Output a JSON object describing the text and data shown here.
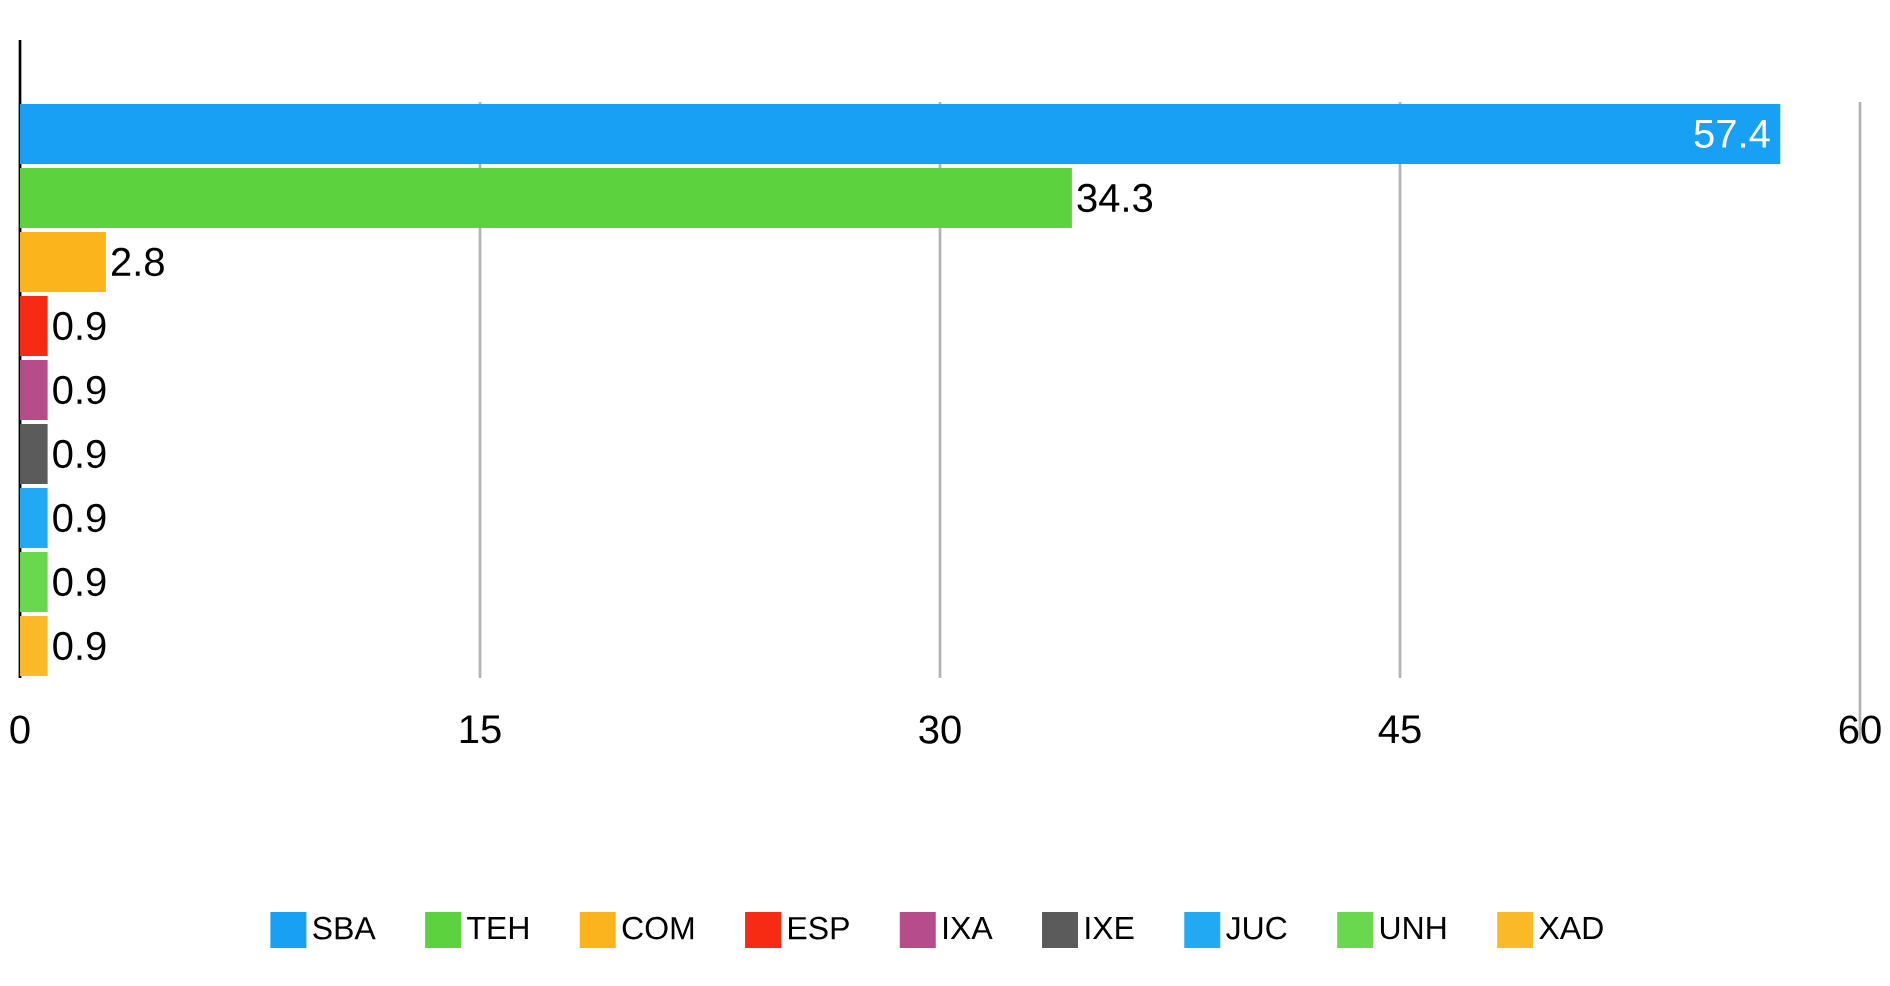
{
  "chart_data": {
    "type": "bar",
    "orientation": "horizontal",
    "categories": [
      null,
      null,
      null,
      null,
      null,
      null,
      null,
      null,
      null
    ],
    "series": [
      {
        "name": "SBA",
        "color": "#18a0f5",
        "values": [
          57.4,
          null,
          null,
          null,
          null,
          null,
          null,
          null,
          null
        ]
      },
      {
        "name": "TEH",
        "color": "#5cd23e",
        "values": [
          null,
          34.3,
          null,
          null,
          null,
          null,
          null,
          null,
          null
        ]
      },
      {
        "name": "COM",
        "color": "#fbb41c",
        "values": [
          null,
          null,
          2.8,
          null,
          null,
          null,
          null,
          null,
          null
        ]
      },
      {
        "name": "ESP",
        "color": "#f72a14",
        "values": [
          null,
          null,
          null,
          0.9,
          null,
          null,
          null,
          null,
          null
        ]
      },
      {
        "name": "IXA",
        "color": "#b64d8a",
        "values": [
          null,
          null,
          null,
          null,
          0.9,
          null,
          null,
          null,
          null
        ]
      },
      {
        "name": "IXE",
        "color": "#5b5b5b",
        "values": [
          null,
          null,
          null,
          null,
          null,
          0.9,
          null,
          null,
          null
        ]
      },
      {
        "name": "JUC",
        "color": "#22a9f4",
        "values": [
          null,
          null,
          null,
          null,
          null,
          null,
          0.9,
          null,
          null
        ]
      },
      {
        "name": "UNH",
        "color": "#6ad84e",
        "values": [
          null,
          null,
          null,
          null,
          null,
          null,
          null,
          0.9,
          null
        ]
      },
      {
        "name": "XAD",
        "color": "#f9b928",
        "values": [
          null,
          null,
          null,
          null,
          null,
          null,
          null,
          null,
          0.9
        ]
      }
    ],
    "xlim": [
      0,
      60
    ],
    "xticks": [
      0,
      15,
      30,
      45,
      60
    ],
    "grid": "x",
    "legend": "bottom",
    "data_labels": true
  }
}
